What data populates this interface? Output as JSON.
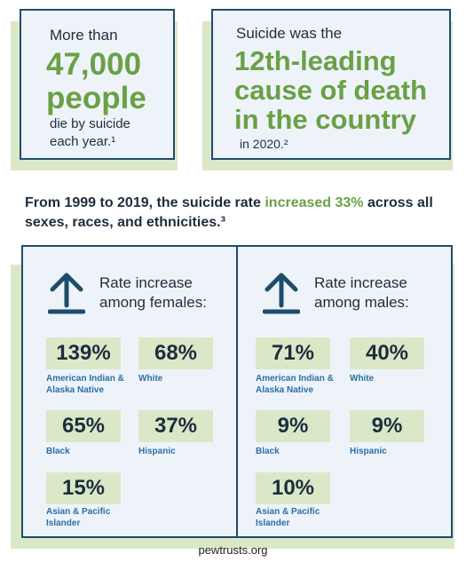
{
  "card1": {
    "line1": "More than",
    "line2": "47,000",
    "line3": "people",
    "line4": "die by suicide",
    "line5": "each year.¹"
  },
  "card2": {
    "line1": "Suicide was the",
    "line2": "12th-leading",
    "line3": "cause of death",
    "line4": "in the country",
    "line5": "in 2020.²"
  },
  "intro": {
    "before": "From 1999 to 2019, the suicide rate ",
    "highlight": "increased 33%",
    "after": " across all sexes, races, and ethnicities.³"
  },
  "females": {
    "title_line1": "Rate increase",
    "title_line2": "among females:",
    "items": [
      {
        "value": "139%",
        "label": "American Indian & Alaska Native"
      },
      {
        "value": "68%",
        "label": "White"
      },
      {
        "value": "65%",
        "label": "Black"
      },
      {
        "value": "37%",
        "label": "Hispanic"
      },
      {
        "value": "15%",
        "label": "Asian & Pacific Islander"
      }
    ]
  },
  "males": {
    "title_line1": "Rate increase",
    "title_line2": "among males:",
    "items": [
      {
        "value": "71%",
        "label": "American Indian & Alaska Native"
      },
      {
        "value": "40%",
        "label": "White"
      },
      {
        "value": "9%",
        "label": "Black"
      },
      {
        "value": "9%",
        "label": "Hispanic"
      },
      {
        "value": "10%",
        "label": "Asian & Pacific Islander"
      }
    ]
  },
  "footer": "pewtrusts.org",
  "colors": {
    "green": "#6aa046",
    "navy": "#1e4d6b",
    "blue_label": "#2a6fa8",
    "tint": "#dbe8c8"
  }
}
